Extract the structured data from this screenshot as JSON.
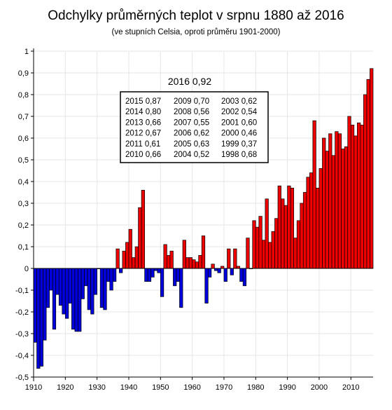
{
  "chart_data": {
    "type": "bar",
    "title": "Odchylky průměrných teplot v srpnu 1880 až 2016",
    "subtitle": "(ve stupních Celsia, oproti průměru 1901-2000)",
    "xlabel": "",
    "ylabel": "",
    "x_ticks": [
      "1910",
      "1920",
      "1930",
      "1940",
      "1950",
      "1960",
      "1970",
      "1980",
      "1990",
      "2000",
      "2010"
    ],
    "y_ticks": [
      "-0,5",
      "-0,4",
      "-0,3",
      "-0,2",
      "-0,1",
      "0",
      "0,1",
      "0,2",
      "0,3",
      "0,4",
      "0,5",
      "0,6",
      "0,7",
      "0,8",
      "0,9",
      "1"
    ],
    "ylim": [
      -0.5,
      1.0
    ],
    "xlim": [
      1910,
      2017
    ],
    "grid": true,
    "colors": {
      "positive": "#ee0000",
      "negative": "#0000dd",
      "grid": "#e6e6e6",
      "axis": "#000000"
    },
    "years": [
      1910,
      1911,
      1912,
      1913,
      1914,
      1915,
      1916,
      1917,
      1918,
      1919,
      1920,
      1921,
      1922,
      1923,
      1924,
      1925,
      1926,
      1927,
      1928,
      1929,
      1930,
      1931,
      1932,
      1933,
      1934,
      1935,
      1936,
      1937,
      1938,
      1939,
      1940,
      1941,
      1942,
      1943,
      1944,
      1945,
      1946,
      1947,
      1948,
      1949,
      1950,
      1951,
      1952,
      1953,
      1954,
      1955,
      1956,
      1957,
      1958,
      1959,
      1960,
      1961,
      1962,
      1963,
      1964,
      1965,
      1966,
      1967,
      1968,
      1969,
      1970,
      1971,
      1972,
      1973,
      1974,
      1975,
      1976,
      1977,
      1978,
      1979,
      1980,
      1981,
      1982,
      1983,
      1984,
      1985,
      1986,
      1987,
      1988,
      1989,
      1990,
      1991,
      1992,
      1993,
      1994,
      1995,
      1996,
      1997,
      1998,
      1999,
      2000,
      2001,
      2002,
      2003,
      2004,
      2005,
      2006,
      2007,
      2008,
      2009,
      2010,
      2011,
      2012,
      2013,
      2014,
      2015,
      2016
    ],
    "values": [
      -0.34,
      -0.46,
      -0.45,
      -0.33,
      -0.18,
      -0.1,
      -0.28,
      -0.12,
      -0.17,
      -0.21,
      -0.23,
      -0.16,
      -0.28,
      -0.29,
      -0.29,
      -0.14,
      -0.08,
      -0.19,
      -0.21,
      -0.12,
      0.0,
      -0.18,
      -0.19,
      -0.06,
      -0.1,
      -0.06,
      0.09,
      -0.02,
      0.08,
      0.12,
      0.18,
      0.05,
      0.1,
      0.28,
      0.36,
      -0.06,
      -0.06,
      -0.04,
      -0.01,
      -0.02,
      -0.13,
      0.11,
      0.06,
      0.08,
      -0.08,
      -0.06,
      -0.18,
      0.13,
      0.05,
      0.05,
      0.04,
      0.03,
      0.06,
      0.15,
      -0.16,
      -0.04,
      0.02,
      -0.01,
      -0.02,
      0.01,
      -0.06,
      0.09,
      -0.03,
      0.09,
      0.01,
      -0.06,
      -0.08,
      0.14,
      0.0,
      0.22,
      0.19,
      0.24,
      0.13,
      0.32,
      0.12,
      0.17,
      0.23,
      0.38,
      0.32,
      0.29,
      0.38,
      0.37,
      0.14,
      0.22,
      0.3,
      0.35,
      0.42,
      0.44,
      0.68,
      0.37,
      0.46,
      0.6,
      0.54,
      0.62,
      0.52,
      0.63,
      0.62,
      0.55,
      0.56,
      0.7,
      0.66,
      0.61,
      0.67,
      0.66,
      0.8,
      0.87,
      0.92
    ],
    "highlight": {
      "title": "2016 0,92"
    },
    "list_items": [
      "2015 0,87",
      "2009 0,70",
      "2003 0,62",
      "2014 0,80",
      "2008 0,56",
      "2002 0,54",
      "2013 0,66",
      "2007 0,55",
      "2001 0,60",
      "2012 0,67",
      "2006 0,62",
      "2000 0,46",
      "2011 0,61",
      "2005 0,63",
      "1999 0,37",
      "2010 0,66",
      "2004 0,52",
      "1998 0,68"
    ]
  }
}
